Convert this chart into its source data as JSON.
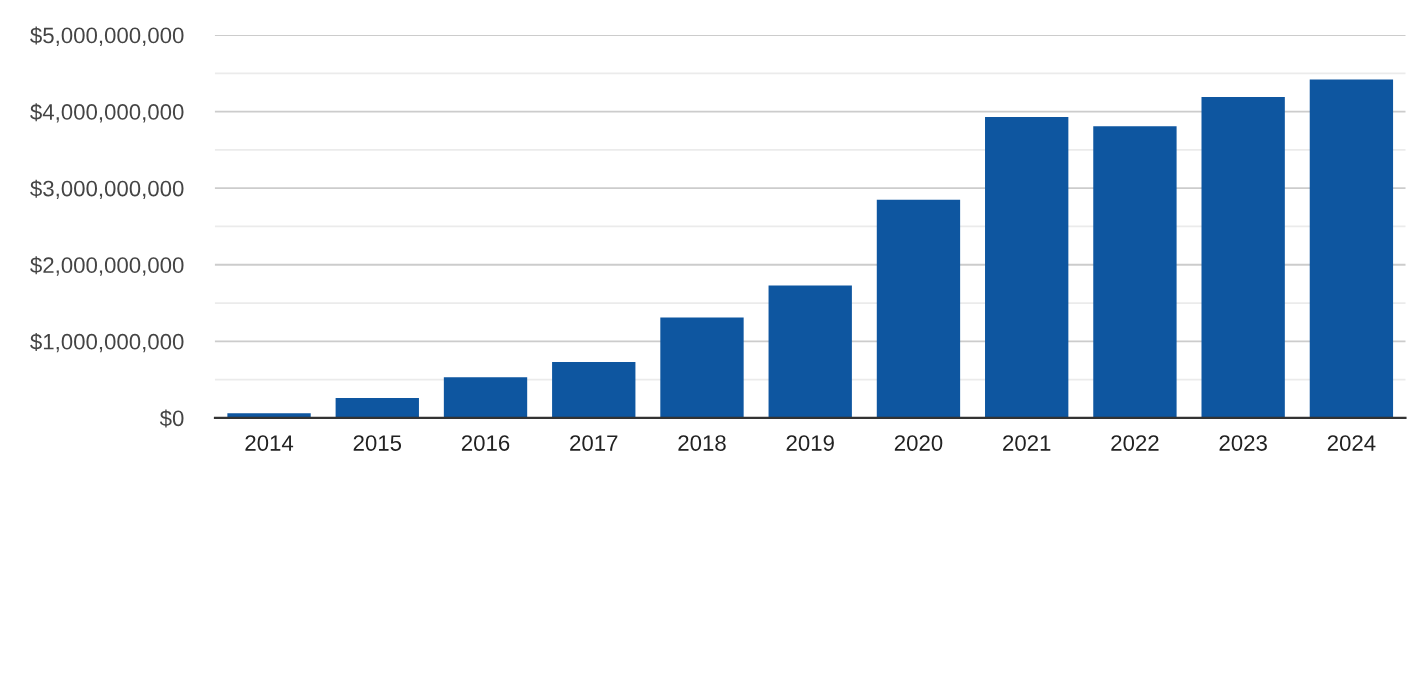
{
  "chart_data": {
    "type": "bar",
    "categories": [
      "2014",
      "2015",
      "2016",
      "2017",
      "2018",
      "2019",
      "2020",
      "2021",
      "2022",
      "2023",
      "2024"
    ],
    "values": [
      60000000,
      260000000,
      530000000,
      730000000,
      1310000000,
      1730000000,
      2850000000,
      3930000000,
      3810000000,
      4190000000,
      4420000000
    ],
    "color": "#0e56a0",
    "ylim": [
      0,
      5000000000
    ],
    "yticks": [
      {
        "value": 0,
        "label": "$0"
      },
      {
        "value": 500000000,
        "label": null
      },
      {
        "value": 1000000000,
        "label": "$1,000,000,000"
      },
      {
        "value": 1500000000,
        "label": null
      },
      {
        "value": 2000000000,
        "label": "$2,000,000,000"
      },
      {
        "value": 2500000000,
        "label": null
      },
      {
        "value": 3000000000,
        "label": "$3,000,000,000"
      },
      {
        "value": 3500000000,
        "label": null
      },
      {
        "value": 4000000000,
        "label": "$4,000,000,000"
      },
      {
        "value": 4500000000,
        "label": null
      },
      {
        "value": 5000000000,
        "label": "$5,000,000,000"
      }
    ],
    "grid": "y",
    "legend": false
  }
}
